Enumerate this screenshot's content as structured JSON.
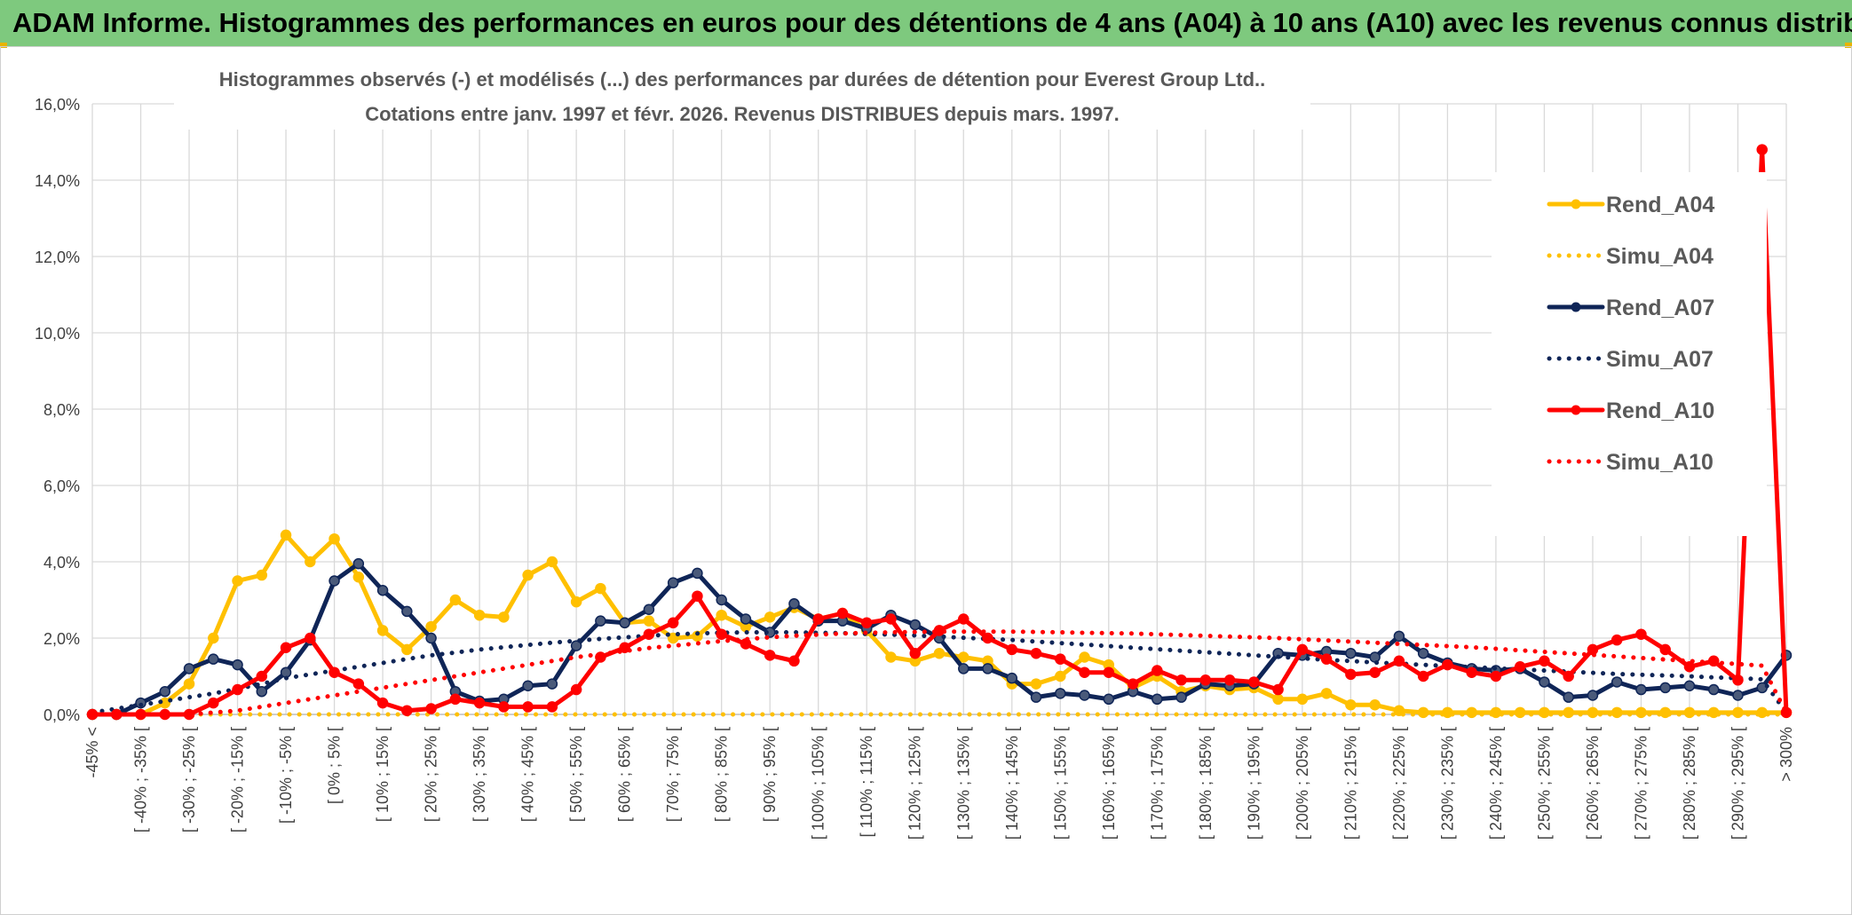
{
  "header": {
    "banner_title": "ADAM Informe. Histogrammes des performances en euros pour des détentions de 4 ans (A04) à 10 ans (A10) avec les revenus connus distribués"
  },
  "chart_data": {
    "type": "line",
    "title": "Histogrammes observés (-) et modélisés (...) des performances par durées de détention pour Everest Group Ltd..",
    "subtitle": "Cotations entre janv. 1997 et févr. 2026.  Revenus DISTRIBUES depuis mars. 1997.",
    "xlabel": "",
    "ylabel": "",
    "ylim": [
      0,
      16
    ],
    "y_ticks": [
      "0,0%",
      "2,0%",
      "4,0%",
      "6,0%",
      "8,0%",
      "10,0%",
      "12,0%",
      "14,0%",
      "16,0%"
    ],
    "legend_position": "right",
    "categories": [
      "-45% <",
      "[ -45% ; -40% [",
      "[ -40% ; -35% [",
      "[ -35% ; -30% [",
      "[ -30% ; -25% [",
      "[ -25% ; -20% [",
      "[ -20% ; -15% [",
      "[ -15% ; -10% [",
      "[ -10% ; -5% [",
      "[ -5% ; 0% [",
      "[ 0% ; 5% [",
      "[ 5% ; 10% [",
      "[ 10% ; 15% [",
      "[ 15% ; 20% [",
      "[ 20% ; 25% [",
      "[ 25% ; 30% [",
      "[ 30% ; 35% [",
      "[ 35% ; 40% [",
      "[ 40% ; 45% [",
      "[ 45% ; 50% [",
      "[ 50% ; 55% [",
      "[ 55% ; 60% [",
      "[ 60% ; 65% [",
      "[ 65% ; 70% [",
      "[ 70% ; 75% [",
      "[ 75% ; 80% [",
      "[ 80% ; 85% [",
      "[ 85% ; 90% [",
      "[ 90% ; 95% [",
      "[ 95% ; 100% [",
      "[ 100% ; 105% [",
      "[ 105% ; 110% [",
      "[ 110% ; 115% [",
      "[ 115% ; 120% [",
      "[ 120% ; 125% [",
      "[ 125% ; 130% [",
      "[ 130% ; 135% [",
      "[ 135% ; 140% [",
      "[ 140% ; 145% [",
      "[ 145% ; 150% [",
      "[ 150% ; 155% [",
      "[ 155% ; 160% [",
      "[ 160% ; 165% [",
      "[ 165% ; 170% [",
      "[ 170% ; 175% [",
      "[ 175% ; 180% [",
      "[ 180% ; 185% [",
      "[ 185% ; 190% [",
      "[ 190% ; 195% [",
      "[ 195% ; 200% [",
      "[ 200% ; 205% [",
      "[ 205% ; 210% [",
      "[ 210% ; 215% [",
      "[ 215% ; 220% [",
      "[ 220% ; 225% [",
      "[ 225% ; 230% [",
      "[ 230% ; 235% [",
      "[ 235% ; 240% [",
      "[ 240% ; 245% [",
      "[ 245% ; 250% [",
      "[ 250% ; 255% [",
      "[ 255% ; 260% [",
      "[ 260% ; 265% [",
      "[ 265% ; 270% [",
      "[ 270% ; 275% [",
      "[ 275% ; 280% [",
      "[ 280% ; 285% [",
      "[ 285% ; 290% [",
      "[ 290% ; 295% [",
      "[ 295% ; 300% [",
      "> 300%"
    ],
    "series": [
      {
        "name": "Rend_A04",
        "style": "solid",
        "markers": true,
        "color": "#FFC000",
        "values": [
          0.0,
          0.0,
          0.0,
          0.3,
          0.8,
          2.0,
          3.5,
          3.65,
          4.7,
          4.0,
          4.6,
          3.6,
          2.2,
          1.7,
          2.3,
          3.0,
          2.6,
          2.55,
          3.65,
          4.0,
          2.95,
          3.3,
          2.4,
          2.45,
          2.0,
          2.05,
          2.6,
          2.3,
          2.55,
          2.8,
          2.5,
          2.65,
          2.2,
          1.5,
          1.4,
          1.6,
          1.5,
          1.4,
          0.8,
          0.8,
          1.0,
          1.5,
          1.3,
          0.7,
          1.0,
          0.6,
          0.75,
          0.65,
          0.7,
          0.4,
          0.4,
          0.55,
          0.25,
          0.25,
          0.1,
          0.05,
          0.05,
          0.05,
          0.05,
          0.05,
          0.05,
          0.05,
          0.05,
          0.05,
          0.05,
          0.05,
          0.05,
          0.05,
          0.05,
          0.05,
          0.05
        ]
      },
      {
        "name": "Simu_A04",
        "style": "dotted",
        "markers": false,
        "color": "#FFC000",
        "values": [
          0.0,
          0.0,
          0.0,
          0.0,
          0.0,
          0.0,
          0.0,
          0.0,
          0.0,
          0.0,
          0.0,
          0.0,
          0.0,
          0.0,
          0.0,
          0.0,
          0.0,
          0.0,
          0.0,
          0.0,
          0.0,
          0.0,
          0.0,
          0.0,
          0.0,
          0.0,
          0.0,
          0.0,
          0.0,
          0.0,
          0.0,
          0.0,
          0.0,
          0.0,
          0.0,
          0.0,
          0.0,
          0.0,
          0.0,
          0.0,
          0.0,
          0.0,
          0.0,
          0.0,
          0.0,
          0.0,
          0.0,
          0.0,
          0.0,
          0.0,
          0.0,
          0.0,
          0.0,
          0.0,
          0.0,
          0.0,
          0.0,
          0.0,
          0.0,
          0.0,
          0.0,
          0.0,
          0.0,
          0.0,
          0.0,
          0.0,
          0.0,
          0.0,
          0.0,
          0.0,
          0.0
        ]
      },
      {
        "name": "Rend_A07",
        "style": "solid",
        "markers": true,
        "color": "#0F2557",
        "values": [
          0.0,
          0.0,
          0.3,
          0.6,
          1.2,
          1.45,
          1.3,
          0.6,
          1.1,
          1.95,
          3.5,
          3.95,
          3.25,
          2.7,
          2.0,
          0.6,
          0.35,
          0.4,
          0.75,
          0.8,
          1.8,
          2.45,
          2.4,
          2.75,
          3.45,
          3.7,
          3.0,
          2.5,
          2.15,
          2.9,
          2.45,
          2.45,
          2.25,
          2.6,
          2.35,
          2.0,
          1.2,
          1.2,
          0.95,
          0.45,
          0.55,
          0.5,
          0.4,
          0.6,
          0.4,
          0.45,
          0.8,
          0.75,
          0.8,
          1.6,
          1.55,
          1.65,
          1.6,
          1.5,
          2.05,
          1.6,
          1.35,
          1.2,
          1.15,
          1.2,
          0.85,
          0.45,
          0.5,
          0.85,
          0.65,
          0.7,
          0.75,
          0.65,
          0.5,
          0.7,
          1.55
        ]
      },
      {
        "name": "Simu_A07",
        "style": "dotted",
        "markers": false,
        "color": "#0F2557",
        "values": [
          0.05,
          0.15,
          0.25,
          0.35,
          0.45,
          0.55,
          0.67,
          0.8,
          0.95,
          1.05,
          1.15,
          1.25,
          1.35,
          1.45,
          1.55,
          1.62,
          1.7,
          1.76,
          1.82,
          1.88,
          1.93,
          1.98,
          2.02,
          2.06,
          2.1,
          2.12,
          2.14,
          2.15,
          2.15,
          2.15,
          2.14,
          2.13,
          2.11,
          2.09,
          2.07,
          2.04,
          2.01,
          1.98,
          1.95,
          1.91,
          1.87,
          1.83,
          1.79,
          1.75,
          1.71,
          1.67,
          1.63,
          1.59,
          1.55,
          1.51,
          1.47,
          1.43,
          1.4,
          1.36,
          1.33,
          1.3,
          1.27,
          1.24,
          1.21,
          1.18,
          1.15,
          1.12,
          1.09,
          1.06,
          1.04,
          1.02,
          1.0,
          0.97,
          0.95,
          0.92,
          0.05
        ]
      },
      {
        "name": "Rend_A10",
        "style": "solid",
        "markers": true,
        "color": "#FF0000",
        "values": [
          0.0,
          0.0,
          0.0,
          0.0,
          0.0,
          0.3,
          0.65,
          1.0,
          1.75,
          2.0,
          1.1,
          0.8,
          0.3,
          0.1,
          0.15,
          0.4,
          0.3,
          0.2,
          0.2,
          0.2,
          0.65,
          1.5,
          1.75,
          2.1,
          2.4,
          3.1,
          2.1,
          1.85,
          1.55,
          1.4,
          2.5,
          2.65,
          2.4,
          2.5,
          1.6,
          2.2,
          2.5,
          2.0,
          1.7,
          1.6,
          1.45,
          1.1,
          1.1,
          0.8,
          1.15,
          0.9,
          0.9,
          0.9,
          0.85,
          0.65,
          1.7,
          1.45,
          1.05,
          1.1,
          1.4,
          1.0,
          1.3,
          1.1,
          1.0,
          1.25,
          1.4,
          1.0,
          1.7,
          1.95,
          2.1,
          1.7,
          1.25,
          1.4,
          0.9,
          14.8,
          0.05
        ]
      },
      {
        "name": "Simu_A10",
        "style": "dotted",
        "markers": false,
        "color": "#FF0000",
        "values": [
          0.0,
          0.0,
          0.0,
          0.0,
          0.0,
          0.05,
          0.1,
          0.2,
          0.3,
          0.4,
          0.5,
          0.6,
          0.7,
          0.8,
          0.9,
          1.0,
          1.1,
          1.2,
          1.3,
          1.4,
          1.5,
          1.58,
          1.66,
          1.74,
          1.8,
          1.86,
          1.92,
          1.97,
          2.02,
          2.06,
          2.09,
          2.12,
          2.14,
          2.15,
          2.16,
          2.17,
          2.17,
          2.17,
          2.17,
          2.16,
          2.15,
          2.14,
          2.13,
          2.12,
          2.1,
          2.08,
          2.06,
          2.04,
          2.02,
          2.0,
          1.97,
          1.94,
          1.91,
          1.88,
          1.85,
          1.82,
          1.79,
          1.76,
          1.72,
          1.68,
          1.64,
          1.6,
          1.56,
          1.52,
          1.48,
          1.44,
          1.4,
          1.36,
          1.32,
          1.28,
          0.05
        ]
      }
    ]
  }
}
